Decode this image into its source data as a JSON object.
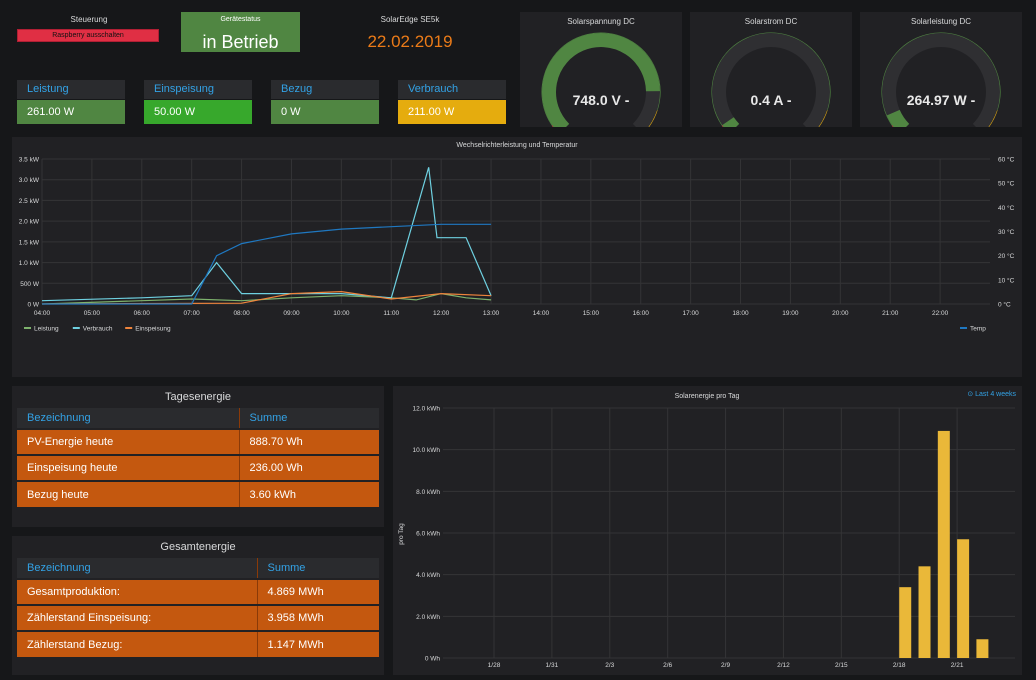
{
  "steuerung": {
    "title": "Steuerung",
    "button": "Raspberry ausschalten"
  },
  "status": {
    "label": "Gerätestatus",
    "value": "in Betrieb"
  },
  "device": {
    "title": "SolarEdge SE5k",
    "date": "22.02.2019"
  },
  "stats": [
    {
      "label": "Leistung",
      "value": "261.00 W",
      "color": "#508642"
    },
    {
      "label": "Einspeisung",
      "value": "50.00 W",
      "color": "#37a82c"
    },
    {
      "label": "Bezug",
      "value": "0 W",
      "color": "#508642"
    },
    {
      "label": "Verbrauch",
      "value": "211.00 W",
      "color": "#e5ac0e"
    }
  ],
  "gauges": [
    {
      "title": "Solarspannung DC",
      "value": "748.0 V -",
      "fraction": 0.83,
      "color": "#508642"
    },
    {
      "title": "Solarstrom DC",
      "value": "0.4 A -",
      "fraction": 0.04,
      "color": "#508642"
    },
    {
      "title": "Solarleistung DC",
      "value": "264.97 W -",
      "fraction": 0.08,
      "color": "#508642"
    }
  ],
  "line_chart": {
    "title": "Wechselrichterleistung und Temperatur",
    "left_ticks": [
      "3.5 kW",
      "3.0 kW",
      "2.5 kW",
      "2.0 kW",
      "1.5 kW",
      "1.0 kW",
      "500 W",
      "0 W"
    ],
    "right_ticks": [
      "60 °C",
      "50 °C",
      "40 °C",
      "30 °C",
      "20 °C",
      "10 °C",
      "0 °C"
    ],
    "x_ticks": [
      "04:00",
      "05:00",
      "06:00",
      "07:00",
      "08:00",
      "09:00",
      "10:00",
      "11:00",
      "12:00",
      "13:00",
      "14:00",
      "15:00",
      "16:00",
      "17:00",
      "18:00",
      "19:00",
      "20:00",
      "21:00",
      "22:00"
    ],
    "legend": [
      {
        "name": "Leistung",
        "color": "#7eb26d"
      },
      {
        "name": "Verbrauch",
        "color": "#6ed0e0"
      },
      {
        "name": "Einspeisung",
        "color": "#ef843c"
      }
    ],
    "legend_right": {
      "name": "Temp",
      "color": "#1f78c1"
    }
  },
  "tagesenergie": {
    "title": "Tagesenergie",
    "headers": [
      "Bezeichnung",
      "Summe"
    ],
    "rows": [
      [
        "PV-Energie heute",
        "888.70 Wh"
      ],
      [
        "Einspeisung heute",
        "236.00 Wh"
      ],
      [
        "Bezug heute",
        "3.60 kWh"
      ]
    ]
  },
  "gesamtenergie": {
    "title": "Gesamtenergie",
    "headers": [
      "Bezeichnung",
      "Summe"
    ],
    "rows": [
      [
        "Gesamtproduktion:",
        "4.869 MWh"
      ],
      [
        "Zählerstand Einspeisung:",
        "3.958 MWh"
      ],
      [
        "Zählerstand Bezug:",
        "1.147 MWh"
      ]
    ]
  },
  "bar_chart": {
    "title": "Solarenergie pro Tag",
    "range_label": "⊙ Last 4 weeks",
    "ylabel": "pro Tag"
  },
  "chart_data": [
    {
      "type": "line",
      "title": "Wechselrichterleistung und Temperatur",
      "x_unit": "time of day",
      "y_left_range_kW": [
        0,
        3.5
      ],
      "y_right_range_C": [
        0,
        60
      ],
      "series": [
        {
          "name": "Leistung",
          "x": [
            "04:00",
            "06:00",
            "07:00",
            "08:00",
            "09:00",
            "10:00",
            "11:00",
            "11:30",
            "12:00",
            "12:30",
            "13:00"
          ],
          "values_kW": [
            0,
            0.08,
            0.12,
            0.08,
            0.15,
            0.2,
            0.15,
            0.1,
            0.25,
            0.15,
            0.1
          ]
        },
        {
          "name": "Verbrauch",
          "x": [
            "04:00",
            "06:00",
            "07:00",
            "07:30",
            "08:00",
            "09:00",
            "10:00",
            "11:00",
            "11:45",
            "11:55",
            "12:30",
            "13:00"
          ],
          "values_kW": [
            0.08,
            0.15,
            0.2,
            1.0,
            0.25,
            0.25,
            0.25,
            0.15,
            3.3,
            1.6,
            1.6,
            0.2
          ]
        },
        {
          "name": "Einspeisung",
          "x": [
            "04:00",
            "08:00",
            "09:00",
            "10:00",
            "11:00",
            "12:00",
            "13:00"
          ],
          "values_kW": [
            0,
            0.02,
            0.25,
            0.3,
            0.12,
            0.25,
            0.2
          ]
        },
        {
          "name": "Temp",
          "x": [
            "04:00",
            "07:00",
            "07:30",
            "08:00",
            "09:00",
            "10:00",
            "11:00",
            "12:00",
            "13:00"
          ],
          "values_C": [
            0,
            0,
            20,
            25,
            29,
            31,
            32,
            33,
            33
          ]
        }
      ]
    },
    {
      "type": "bar",
      "title": "Solarenergie pro Tag",
      "ylabel": "pro Tag",
      "x_ticks": [
        "1/28",
        "1/31",
        "2/3",
        "2/6",
        "2/9",
        "2/12",
        "2/15",
        "2/18",
        "2/21"
      ],
      "y_ticks": [
        "12.0 kWh",
        "10.0 kWh",
        "8.0 kWh",
        "6.0 kWh",
        "4.0 kWh",
        "2.0 kWh",
        "0 Wh"
      ],
      "ylim": [
        0,
        12
      ],
      "categories": [
        "2/18",
        "2/19",
        "2/20",
        "2/21",
        "2/22"
      ],
      "values": [
        3.4,
        4.4,
        10.9,
        5.7,
        0.9
      ]
    }
  ]
}
